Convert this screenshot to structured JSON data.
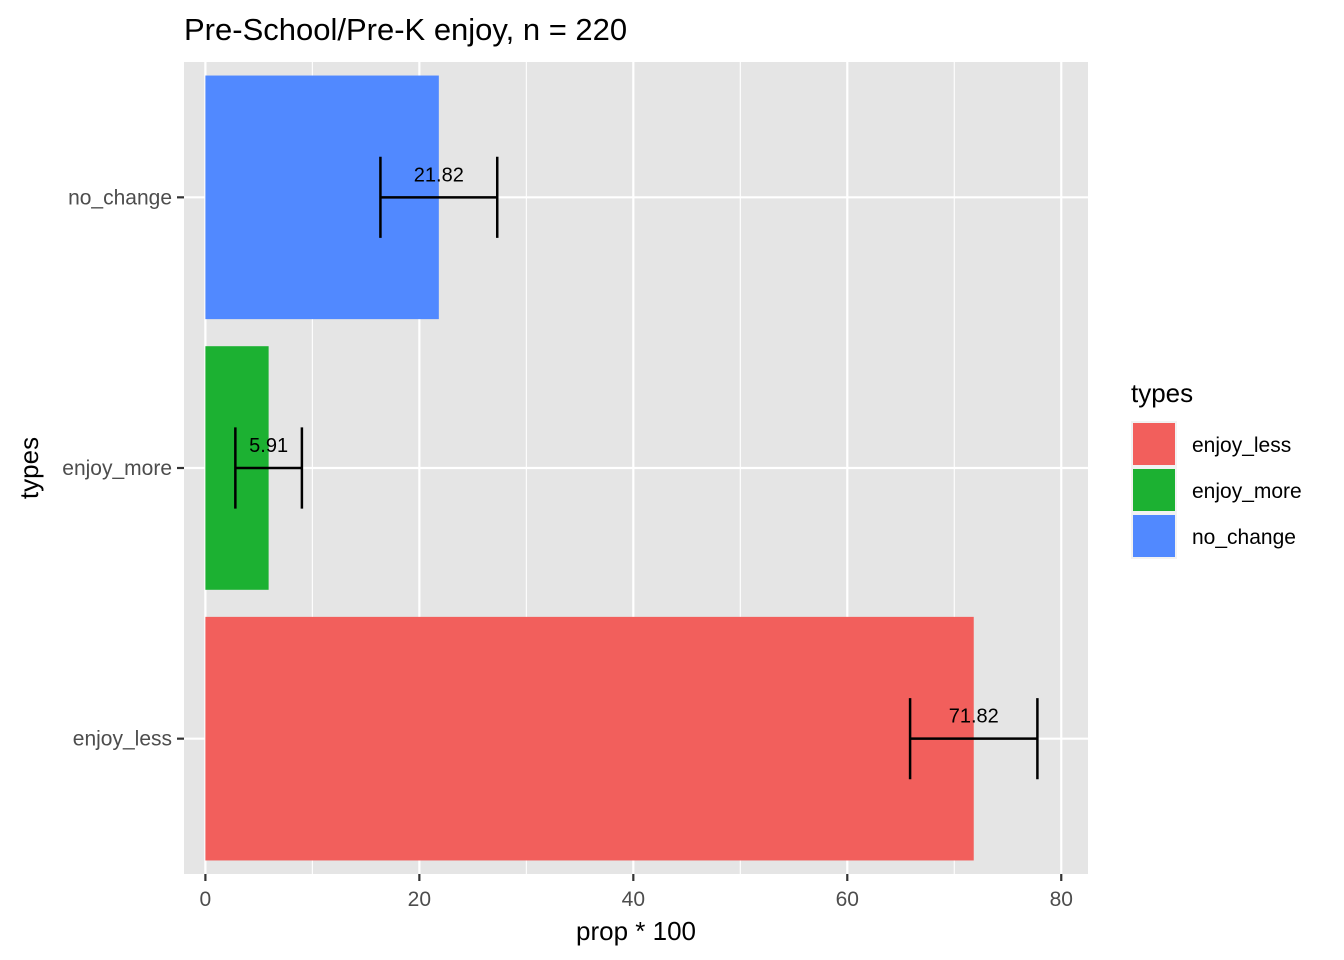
{
  "chart_data": {
    "type": "bar",
    "orientation": "horizontal",
    "title": "Pre-School/Pre-K enjoy, n = 220",
    "xlabel": "prop * 100",
    "ylabel": "types",
    "xlim": [
      -2,
      82.5
    ],
    "x_ticks": [
      0,
      20,
      40,
      60,
      80
    ],
    "x_minor_ticks": [
      10,
      30,
      50,
      70
    ],
    "grid": true,
    "categories": [
      "enjoy_less",
      "enjoy_more",
      "no_change"
    ],
    "values": [
      71.82,
      5.91,
      21.82
    ],
    "value_labels": [
      "71.82",
      "5.91",
      "21.82"
    ],
    "error_bars": [
      {
        "low": 65.87,
        "high": 77.77
      },
      {
        "low": 2.8,
        "high": 9.02
      },
      {
        "low": 16.36,
        "high": 27.28
      }
    ],
    "colors": {
      "enjoy_less": "#F25F5C",
      "enjoy_more": "#1CB132",
      "no_change": "#5189FF"
    },
    "panel_background": "#E5E5E5",
    "legend": {
      "title": "types",
      "placement": "right",
      "entries": [
        "enjoy_less",
        "enjoy_more",
        "no_change"
      ]
    }
  }
}
